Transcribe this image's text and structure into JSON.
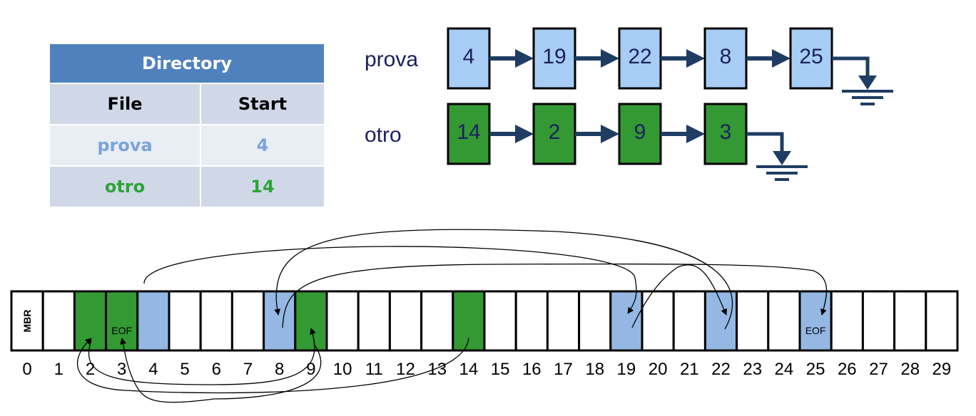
{
  "directory": {
    "title": "Directory",
    "headers": [
      "File",
      "Start"
    ],
    "rows": [
      {
        "file": "prova",
        "start": "4"
      },
      {
        "file": "otro",
        "start": "14"
      }
    ]
  },
  "chains": [
    {
      "name": "prova",
      "color": "#a7cdf5",
      "blocks": [
        "4",
        "19",
        "22",
        "8",
        "25"
      ]
    },
    {
      "name": "otro",
      "color": "#339933",
      "blocks": [
        "14",
        "2",
        "9",
        "3"
      ]
    }
  ],
  "disk": {
    "mbr_label": "MBR",
    "eof_label": "EOF",
    "prova_color": "#94b8e3",
    "otro_color": "#339933",
    "prova_blocks": [
      4,
      8,
      19,
      22,
      25
    ],
    "otro_blocks": [
      2,
      3,
      9,
      14
    ],
    "eof_blocks": [
      3,
      25
    ],
    "block_numbers": [
      "0",
      "1",
      "2",
      "3",
      "4",
      "5",
      "6",
      "7",
      "8",
      "9",
      "10",
      "11",
      "12",
      "13",
      "14",
      "15",
      "16",
      "17",
      "18",
      "19",
      "20",
      "21",
      "22",
      "23",
      "24",
      "25",
      "26",
      "27",
      "28",
      "29"
    ]
  },
  "colors": {
    "arrow": "#1f3d63",
    "chain_label": "#1c2060",
    "block_text": "#1c2060"
  }
}
